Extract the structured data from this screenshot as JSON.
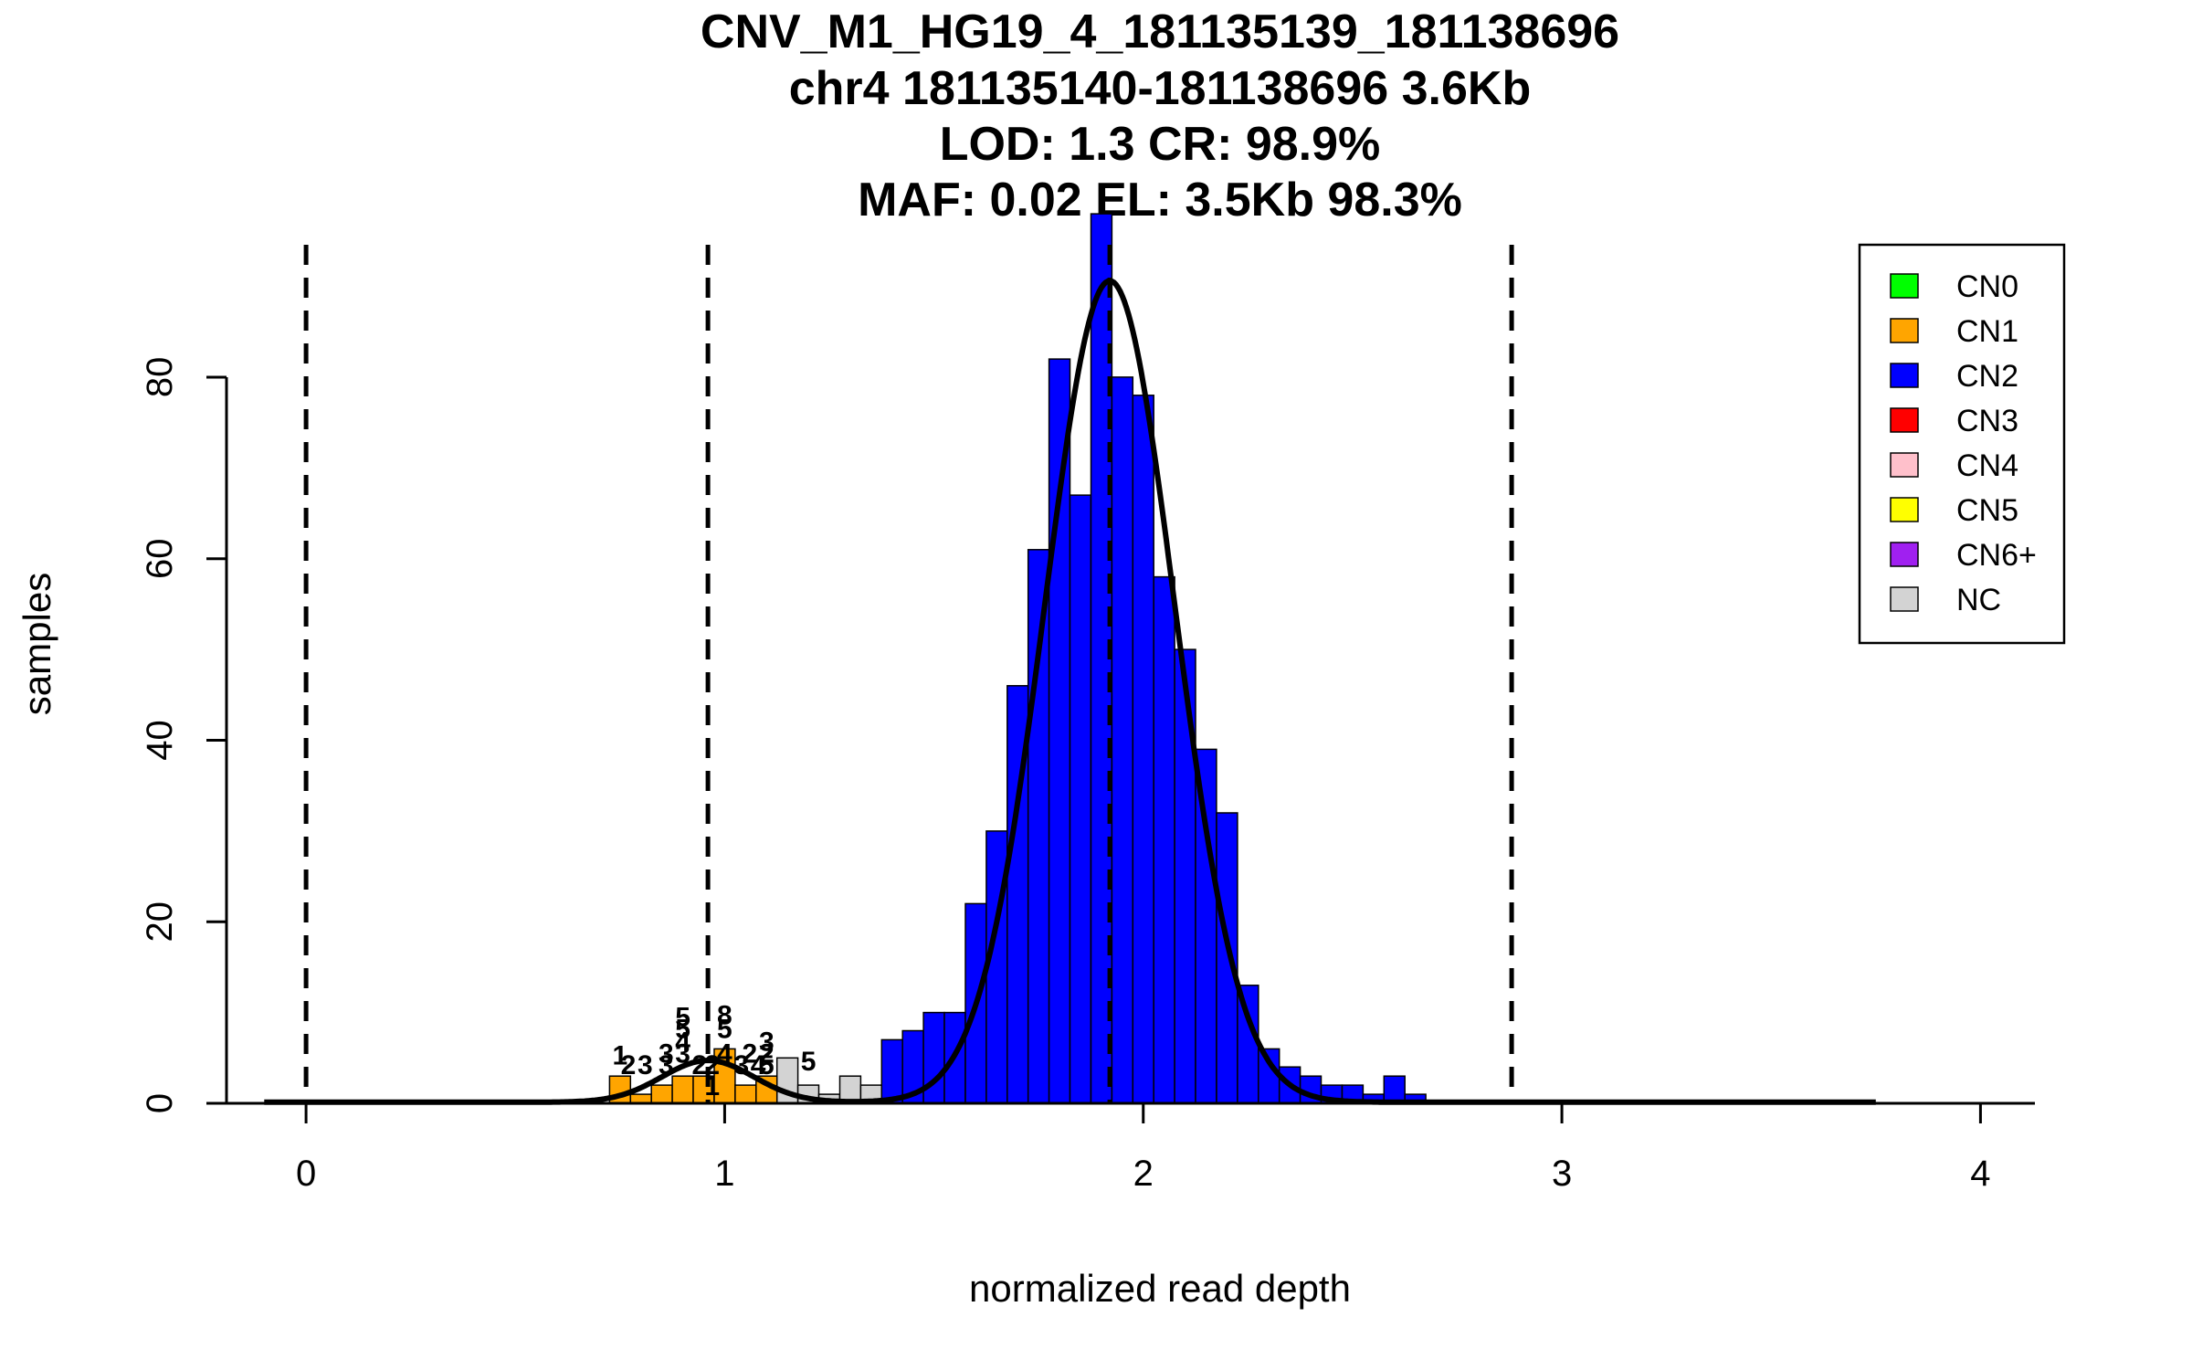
{
  "chart_data": {
    "type": "bar",
    "title_lines": [
      "CNV_M1_HG19_4_181135139_181138696",
      "chr4 181135140-181138696 3.6Kb",
      "LOD: 1.3 CR: 98.9%",
      "MAF: 0.02 EL: 3.5Kb 98.3%"
    ],
    "xlabel": "normalized read depth",
    "ylabel": "samples",
    "xlim": [
      -0.19,
      4.13
    ],
    "ylim": [
      0,
      97
    ],
    "xticks": [
      "0",
      "1",
      "2",
      "3",
      "4"
    ],
    "yticks": [
      "0",
      "20",
      "40",
      "60",
      "80"
    ],
    "grid": false,
    "legend_position": "top-right",
    "colors": {
      "CN0": "#00ff00",
      "CN1": "#ffa500",
      "CN2": "#0000ff",
      "CN3": "#ff0000",
      "CN4": "#ffc0cb",
      "CN5": "#ffff00",
      "CN6+": "#a020f0",
      "NC": "#d3d3d3"
    },
    "legend": [
      "CN0",
      "CN1",
      "CN2",
      "CN3",
      "CN4",
      "CN5",
      "CN6+",
      "NC"
    ],
    "bin_width": 0.05,
    "bins_cn1": [
      {
        "x": 0.75,
        "y": 3
      },
      {
        "x": 0.8,
        "y": 1
      },
      {
        "x": 0.85,
        "y": 2
      },
      {
        "x": 0.9,
        "y": 3
      },
      {
        "x": 0.95,
        "y": 3
      },
      {
        "x": 1.0,
        "y": 6
      },
      {
        "x": 1.05,
        "y": 2
      },
      {
        "x": 1.1,
        "y": 3
      }
    ],
    "bins_nc": [
      {
        "x": 0.95,
        "y": 2
      },
      {
        "x": 1.15,
        "y": 5
      },
      {
        "x": 1.2,
        "y": 2
      },
      {
        "x": 1.25,
        "y": 1
      },
      {
        "x": 1.3,
        "y": 3
      },
      {
        "x": 1.35,
        "y": 2
      }
    ],
    "bins_cn2": [
      {
        "x": 1.4,
        "y": 7
      },
      {
        "x": 1.45,
        "y": 8
      },
      {
        "x": 1.5,
        "y": 10
      },
      {
        "x": 1.55,
        "y": 10
      },
      {
        "x": 1.6,
        "y": 22
      },
      {
        "x": 1.65,
        "y": 30
      },
      {
        "x": 1.7,
        "y": 46
      },
      {
        "x": 1.75,
        "y": 61
      },
      {
        "x": 1.8,
        "y": 82
      },
      {
        "x": 1.85,
        "y": 67
      },
      {
        "x": 1.9,
        "y": 98
      },
      {
        "x": 1.95,
        "y": 80
      },
      {
        "x": 2.0,
        "y": 78
      },
      {
        "x": 2.05,
        "y": 58
      },
      {
        "x": 2.1,
        "y": 50
      },
      {
        "x": 2.15,
        "y": 39
      },
      {
        "x": 2.2,
        "y": 32
      },
      {
        "x": 2.25,
        "y": 13
      },
      {
        "x": 2.3,
        "y": 6
      },
      {
        "x": 2.35,
        "y": 4
      },
      {
        "x": 2.4,
        "y": 3
      },
      {
        "x": 2.45,
        "y": 2
      },
      {
        "x": 2.5,
        "y": 2
      },
      {
        "x": 2.55,
        "y": 1
      },
      {
        "x": 2.6,
        "y": 3
      },
      {
        "x": 2.65,
        "y": 1
      }
    ],
    "bar_labels": [
      {
        "x": 0.75,
        "y": 4.3,
        "text": "1"
      },
      {
        "x": 0.77,
        "y": 3.2,
        "text": "2"
      },
      {
        "x": 0.81,
        "y": 3.2,
        "text": "3"
      },
      {
        "x": 0.86,
        "y": 3.2,
        "text": "3"
      },
      {
        "x": 0.86,
        "y": 4.5,
        "text": "3"
      },
      {
        "x": 0.9,
        "y": 4.5,
        "text": "3"
      },
      {
        "x": 0.9,
        "y": 5.8,
        "text": "4"
      },
      {
        "x": 0.9,
        "y": 7.2,
        "text": "5"
      },
      {
        "x": 0.9,
        "y": 8.5,
        "text": "5"
      },
      {
        "x": 0.94,
        "y": 3.2,
        "text": "2"
      },
      {
        "x": 0.97,
        "y": 3.2,
        "text": "2"
      },
      {
        "x": 0.97,
        "y": 0.9,
        "text": "1"
      },
      {
        "x": 1.0,
        "y": 4.5,
        "text": "4"
      },
      {
        "x": 1.0,
        "y": 7.2,
        "text": "5"
      },
      {
        "x": 1.0,
        "y": 8.7,
        "text": "8"
      },
      {
        "x": 1.04,
        "y": 3.2,
        "text": "3"
      },
      {
        "x": 1.06,
        "y": 4.5,
        "text": "2"
      },
      {
        "x": 1.08,
        "y": 3.2,
        "text": "4"
      },
      {
        "x": 1.1,
        "y": 3.2,
        "text": "5"
      },
      {
        "x": 1.1,
        "y": 4.5,
        "text": "2"
      },
      {
        "x": 1.1,
        "y": 5.8,
        "text": "3"
      },
      {
        "x": 1.2,
        "y": 3.6,
        "text": "5"
      }
    ],
    "dashed_lines_x": [
      0,
      0.96,
      1.92,
      2.88
    ],
    "fits": [
      {
        "mean": 0.96,
        "sd": 0.11,
        "peak": 4.6
      },
      {
        "mean": 1.92,
        "sd": 0.155,
        "peak": 90.5
      }
    ]
  }
}
